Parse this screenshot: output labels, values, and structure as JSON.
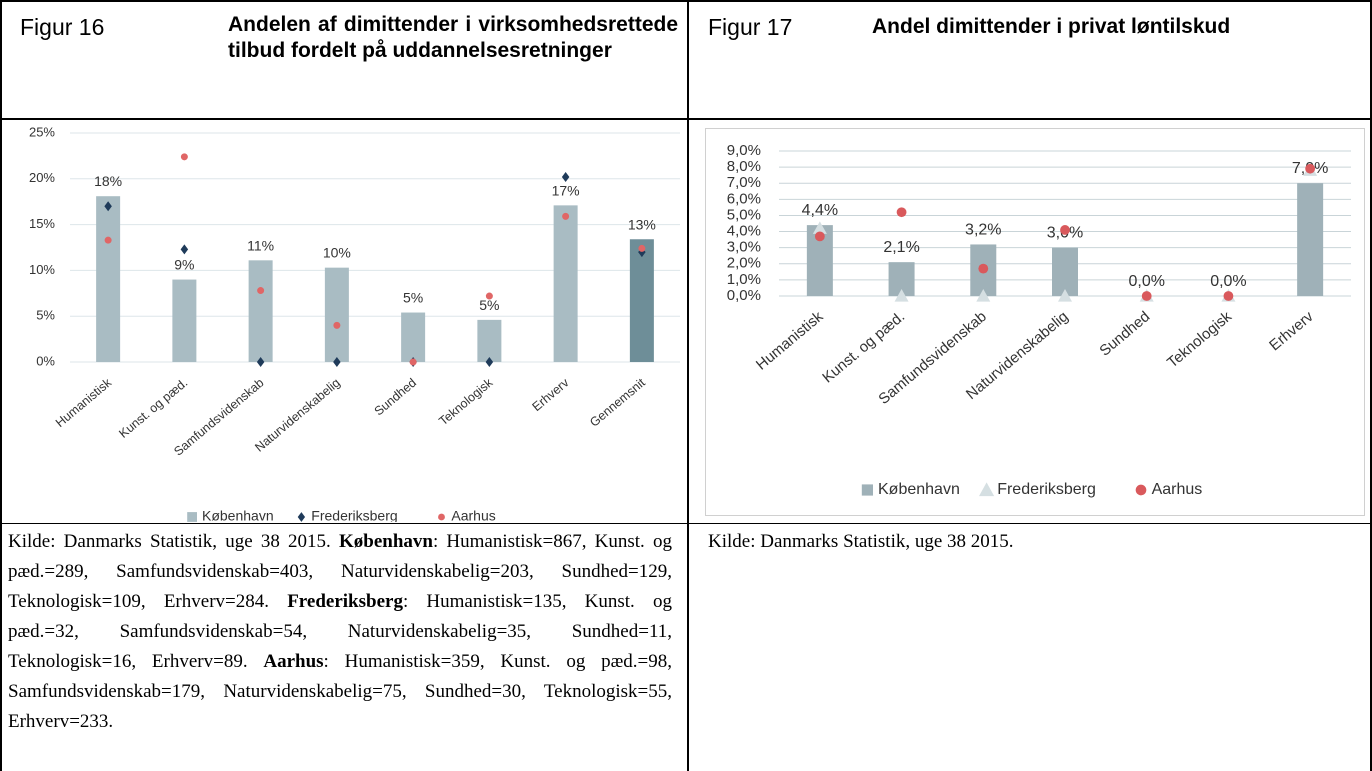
{
  "figures": [
    {
      "label": "Figur 16",
      "title": "Andelen af dimittender i virksomhedsrettede tilbud fordelt på uddannelsesretninger",
      "source": [
        {
          "text": "Kilde: Danmarks Statistik, uge 38 2015. ",
          "bold": false
        },
        {
          "text": "København",
          "bold": true
        },
        {
          "text": ": Humanistisk=867, Kunst. og pæd.=289, Samfundsvidenskab=403, Naturvidenskabelig=203, Sundhed=129, Teknologisk=109, Erhverv=284. ",
          "bold": false
        },
        {
          "text": "Frederiksberg",
          "bold": true
        },
        {
          "text": ": Humanistisk=135, Kunst. og pæd.=32, Samfundsvidenskab=54, Naturvidenskabelig=35, Sundhed=11, Teknologisk=16, Erhverv=89. ",
          "bold": false
        },
        {
          "text": "Aarhus",
          "bold": true
        },
        {
          "text": ": Humanistisk=359, Kunst. og pæd.=98, Samfundsvidenskab=179, Naturvidenskabelig=75, Sundhed=30, Teknologisk=55, Erhverv=233.",
          "bold": false
        }
      ]
    },
    {
      "label": "Figur 17",
      "title": "Andel dimittender i privat løntilskud",
      "source": [
        {
          "text": "Kilde: Danmarks Statistik, uge 38 2015.",
          "bold": false
        }
      ]
    }
  ],
  "chart_data": [
    {
      "type": "bar",
      "categories": [
        "Humanistisk",
        "Kunst. og pæd.",
        "Samfundsvidenskab",
        "Naturvidenskabelig",
        "Sundhed",
        "Teknologisk",
        "Erhverv",
        "Gennemsnit"
      ],
      "ylim": [
        0,
        25
      ],
      "yticks": [
        {
          "value": 0,
          "label": "0%"
        },
        {
          "value": 5,
          "label": "5%"
        },
        {
          "value": 10,
          "label": "10%"
        },
        {
          "value": 15,
          "label": "15%"
        },
        {
          "value": 20,
          "label": "20%"
        },
        {
          "value": 25,
          "label": "25%"
        }
      ],
      "grid": true,
      "series": [
        {
          "name": "København",
          "mark": "bar",
          "color": "#a9bcc3",
          "colors": [
            "#a9bcc3",
            "#a9bcc3",
            "#a9bcc3",
            "#a9bcc3",
            "#a9bcc3",
            "#a9bcc3",
            "#a9bcc3",
            "#6e8e98"
          ],
          "values": [
            18.1,
            9.0,
            11.1,
            10.3,
            5.4,
            4.6,
            17.1,
            13.4
          ],
          "value_labels": [
            "18%",
            "9%",
            "11%",
            "10%",
            "5%",
            "5%",
            "17%",
            "13%"
          ]
        },
        {
          "name": "Frederiksberg",
          "mark": "diamond",
          "color": "#1f3b5a",
          "values": [
            17.0,
            12.3,
            0,
            0,
            0,
            0,
            20.2,
            12.0
          ]
        },
        {
          "name": "Aarhus",
          "mark": "circle",
          "color": "#e06666",
          "values": [
            13.3,
            22.4,
            7.8,
            4.0,
            0,
            7.2,
            15.9,
            12.4
          ]
        }
      ]
    },
    {
      "type": "bar",
      "categories": [
        "Humanistisk",
        "Kunst. og pæd.",
        "Samfundsvidenskab",
        "Naturvidenskabelig",
        "Sundhed",
        "Teknologisk",
        "Erhverv"
      ],
      "ylim": [
        0,
        9
      ],
      "yticks": [
        {
          "value": 0,
          "label": "0,0%"
        },
        {
          "value": 1,
          "label": "1,0%"
        },
        {
          "value": 2,
          "label": "2,0%"
        },
        {
          "value": 3,
          "label": "3,0%"
        },
        {
          "value": 4,
          "label": "4,0%"
        },
        {
          "value": 5,
          "label": "5,0%"
        },
        {
          "value": 6,
          "label": "6,0%"
        },
        {
          "value": 7,
          "label": "7,0%"
        },
        {
          "value": 8,
          "label": "8,0%"
        },
        {
          "value": 9,
          "label": "9,0%"
        }
      ],
      "grid": true,
      "series": [
        {
          "name": "København",
          "mark": "bar",
          "color": "#9fb1b8",
          "values": [
            4.4,
            2.1,
            3.2,
            3.0,
            0,
            0,
            7.0
          ],
          "value_labels": [
            "4,4%",
            "2,1%",
            "3,2%",
            "3,0%",
            "0,0%",
            "0,0%",
            "7,0%"
          ]
        },
        {
          "name": "Frederiksberg",
          "mark": "triangle",
          "color": "#d5dfe2",
          "values": [
            4.2,
            0,
            0,
            0,
            0,
            0,
            7.8
          ]
        },
        {
          "name": "Aarhus",
          "mark": "circle",
          "color": "#d9595c",
          "values": [
            3.7,
            5.2,
            1.7,
            4.1,
            0,
            0,
            7.9
          ]
        }
      ]
    }
  ]
}
